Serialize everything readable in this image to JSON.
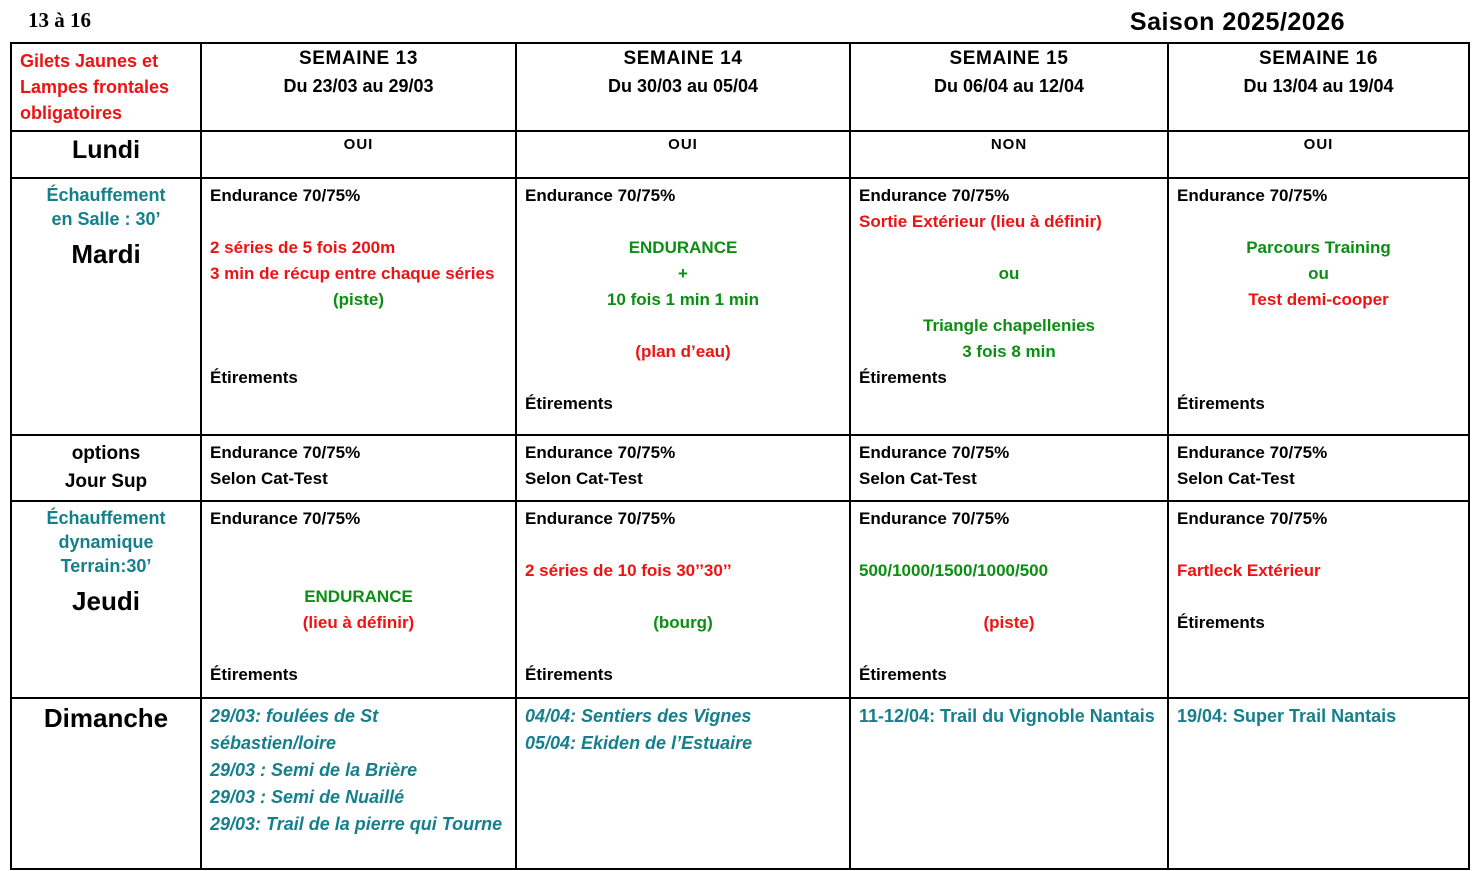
{
  "header": {
    "range": "13 à 16",
    "season": "Saison 2025/2026"
  },
  "colors": {
    "black": "#000000",
    "red": "#f01212",
    "green": "#0b8f12",
    "teal": "#157f8c"
  },
  "table": {
    "corner_lines": [
      {
        "text": "Gilets Jaunes et",
        "color": "red"
      },
      {
        "text": "Lampes frontales",
        "color": "red"
      },
      {
        "text": "obligatoires",
        "color": "red"
      }
    ],
    "weeks": [
      {
        "title": "SEMAINE 13",
        "dates": "Du 23/03 au 29/03"
      },
      {
        "title": "SEMAINE 14",
        "dates": "Du 30/03 au 05/04"
      },
      {
        "title": "SEMAINE 15",
        "dates": "Du 06/04 au 12/04"
      },
      {
        "title": "SEMAINE 16",
        "dates": "Du 13/04 au 19/04"
      }
    ],
    "rows": {
      "lundi": {
        "label": "Lundi",
        "values": [
          "OUI",
          "OUI",
          "NON",
          "OUI"
        ]
      },
      "mardi": {
        "label": "Mardi",
        "note_lines": [
          {
            "text": "Échauffement",
            "color": "teal",
            "align": "center"
          },
          {
            "text": "en Salle : 30’",
            "color": "teal",
            "align": "center"
          }
        ],
        "cells": [
          [
            {
              "text": "Endurance 70/75%"
            },
            {
              "text": ""
            },
            {
              "text": "2 séries de 5 fois 200m",
              "color": "red"
            },
            {
              "text": "3 min de récup entre chaque séries",
              "color": "red"
            },
            {
              "text": "(piste)",
              "color": "green",
              "align": "center"
            },
            {
              "text": ""
            },
            {
              "text": ""
            },
            {
              "text": "Étirements"
            }
          ],
          [
            {
              "text": "Endurance 70/75%"
            },
            {
              "text": ""
            },
            {
              "text": "ENDURANCE",
              "color": "green",
              "align": "center"
            },
            {
              "text": "+",
              "color": "green",
              "align": "center"
            },
            {
              "text": "10 fois 1 min 1 min",
              "color": "green",
              "align": "center"
            },
            {
              "text": ""
            },
            {
              "text": "(plan d’eau)",
              "color": "red",
              "align": "center"
            },
            {
              "text": ""
            },
            {
              "text": "Étirements"
            }
          ],
          [
            {
              "text": "Endurance 70/75%"
            },
            {
              "text": "Sortie Extérieur (lieu à définir)",
              "color": "red",
              "align": "justify"
            },
            {
              "text": ""
            },
            {
              "text": "ou",
              "color": "green",
              "align": "center"
            },
            {
              "text": ""
            },
            {
              "text": "Triangle chapellenies",
              "color": "green",
              "align": "center"
            },
            {
              "text": "3 fois 8 min",
              "color": "green",
              "align": "center"
            },
            {
              "text": "Étirements"
            }
          ],
          [
            {
              "text": "Endurance 70/75%"
            },
            {
              "text": ""
            },
            {
              "text": "Parcours Training",
              "color": "green",
              "align": "center"
            },
            {
              "text": "ou",
              "color": "green",
              "align": "center"
            },
            {
              "text": "Test demi-cooper",
              "color": "red",
              "align": "center"
            },
            {
              "text": ""
            },
            {
              "text": ""
            },
            {
              "text": ""
            },
            {
              "text": "Étirements"
            }
          ]
        ]
      },
      "jour_sup": {
        "label_lines": [
          {
            "text": "options",
            "align": "center"
          },
          {
            "text": "Jour Sup",
            "align": "center"
          }
        ],
        "cells": [
          [
            {
              "text": "Endurance 70/75%"
            },
            {
              "text": "Selon Cat-Test"
            }
          ],
          [
            {
              "text": "Endurance 70/75%"
            },
            {
              "text": "Selon Cat-Test"
            }
          ],
          [
            {
              "text": "Endurance 70/75%"
            },
            {
              "text": "Selon Cat-Test"
            }
          ],
          [
            {
              "text": "Endurance 70/75%"
            },
            {
              "text": "Selon Cat-Test"
            }
          ]
        ]
      },
      "jeudi": {
        "label": "Jeudi",
        "note_lines": [
          {
            "text": "Échauffement",
            "color": "teal",
            "align": "center"
          },
          {
            "text": "dynamique",
            "color": "teal",
            "align": "center"
          },
          {
            "text": "Terrain:30’",
            "color": "teal",
            "align": "center"
          }
        ],
        "cells": [
          [
            {
              "text": "Endurance 70/75%"
            },
            {
              "text": ""
            },
            {
              "text": ""
            },
            {
              "text": "ENDURANCE",
              "color": "green",
              "align": "center"
            },
            {
              "text": "(lieu à définir)",
              "color": "red",
              "align": "center"
            },
            {
              "text": ""
            },
            {
              "text": "Étirements"
            }
          ],
          [
            {
              "text": "Endurance 70/75%"
            },
            {
              "text": ""
            },
            {
              "text": "2 séries de 10 fois 30’’30’’",
              "color": "red"
            },
            {
              "text": ""
            },
            {
              "text": "(bourg)",
              "color": "green",
              "align": "center"
            },
            {
              "text": ""
            },
            {
              "text": "Étirements"
            }
          ],
          [
            {
              "text": "Endurance 70/75%"
            },
            {
              "text": ""
            },
            {
              "text": "500/1000/1500/1000/500",
              "color": "green"
            },
            {
              "text": ""
            },
            {
              "text": "(piste)",
              "color": "red",
              "align": "center"
            },
            {
              "text": ""
            },
            {
              "text": "Étirements"
            }
          ],
          [
            {
              "text": "Endurance 70/75%"
            },
            {
              "text": ""
            },
            {
              "text": "Fartleck Extérieur",
              "color": "red"
            },
            {
              "text": ""
            },
            {
              "text": "Étirements"
            }
          ]
        ]
      },
      "dimanche": {
        "label": "Dimanche",
        "cells": [
          [
            {
              "text": "29/03: foulées de St sébastien/loire",
              "color": "teal",
              "italic": true
            },
            {
              "text": "29/03 : Semi de la Brière",
              "color": "teal",
              "italic": true
            },
            {
              "text": "29/03 : Semi de Nuaillé",
              "color": "teal",
              "italic": true
            },
            {
              "text": "29/03: Trail de la pierre qui Tourne",
              "color": "teal",
              "italic": true
            }
          ],
          [
            {
              "text": "04/04: Sentiers des Vignes",
              "color": "teal",
              "italic": true
            },
            {
              "text": "05/04: Ekiden de l’Estuaire",
              "color": "teal",
              "italic": true
            }
          ],
          [
            {
              "text": "11-12/04: Trail du Vignoble Nantais",
              "color": "teal"
            }
          ],
          [
            {
              "text": "19/04: Super Trail Nantais",
              "color": "teal"
            }
          ]
        ]
      }
    }
  }
}
